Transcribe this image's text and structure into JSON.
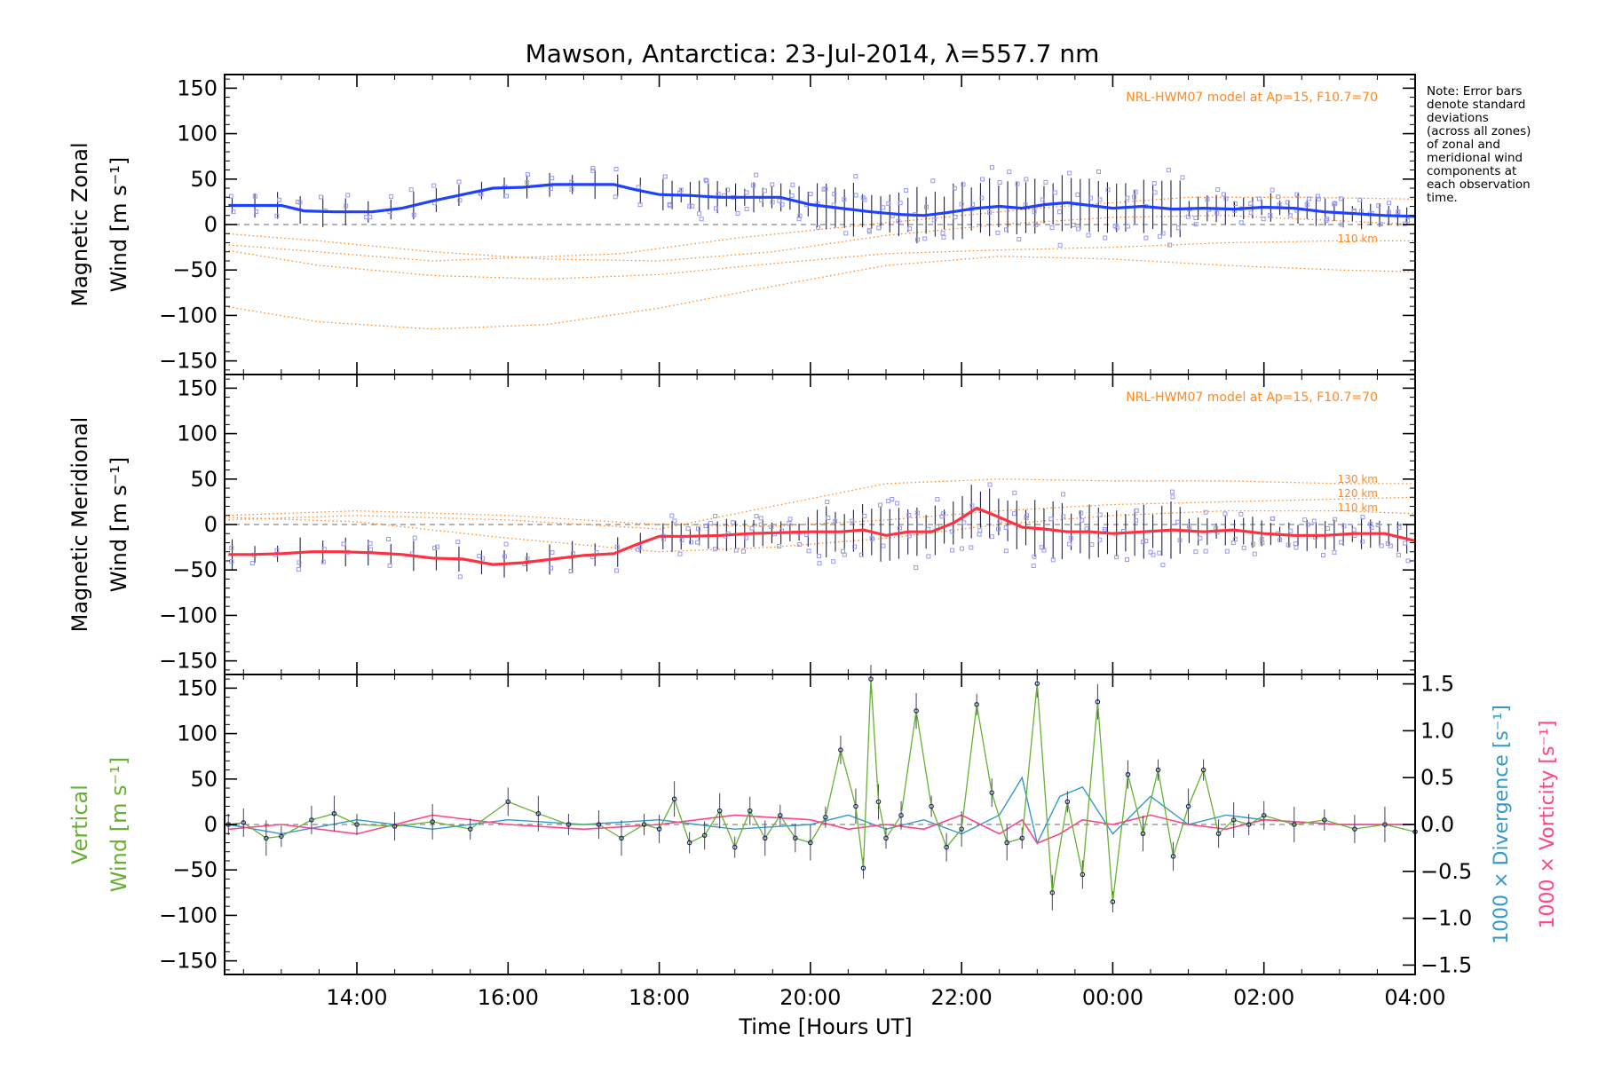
{
  "title": "Mawson, Antarctica: 23-Jul-2014, λ=557.7 nm",
  "xlabel": "Time [Hours UT]",
  "note_lines": [
    "Note: Error bars",
    "denote standard",
    "deviations",
    "(across all zones)",
    "of zonal and",
    "meridional wind",
    "components at",
    "each observation",
    "time."
  ],
  "colors": {
    "zonal": "#2040ff",
    "meridional": "#ff3040",
    "vertical": "#66b032",
    "divergence": "#3399cc",
    "vorticity": "#ff4488",
    "model": "#ff8822",
    "zone_markers": "#9999ee"
  },
  "chart_data": [
    {
      "type": "line",
      "name": "zonal",
      "ylabel": [
        "Magnetic Zonal",
        "Wind [m s⁻¹]"
      ],
      "model_label": "NRL-HWM07 model at Ap=15, F10.7=70",
      "model_level_labels": [
        "110 km"
      ],
      "xlim": [
        12.25,
        28.0
      ],
      "xticks": [
        14,
        16,
        18,
        20,
        22,
        24,
        26,
        28
      ],
      "xtick_labels": [
        "14:00",
        "16:00",
        "18:00",
        "20:00",
        "22:00",
        "00:00",
        "02:00",
        "04:00"
      ],
      "ylim": [
        -165,
        165
      ],
      "yticks": [
        -150,
        -100,
        -50,
        0,
        50,
        100,
        150
      ],
      "series": [
        {
          "role": "mean",
          "x": [
            12.3,
            12.7,
            13.0,
            13.3,
            13.7,
            14.2,
            14.6,
            15.0,
            15.4,
            15.8,
            16.2,
            16.6,
            17.0,
            17.4,
            17.7,
            18.0,
            18.4,
            18.8,
            19.2,
            19.6,
            20.0,
            20.4,
            20.8,
            21.2,
            21.5,
            21.8,
            22.2,
            22.5,
            22.8,
            23.1,
            23.4,
            23.7,
            24.0,
            24.4,
            24.8,
            25.2,
            25.6,
            26.0,
            26.4,
            26.8,
            27.2,
            27.6,
            28.0
          ],
          "y": [
            21,
            21,
            21,
            15,
            14,
            14,
            18,
            26,
            33,
            40,
            41,
            44,
            44,
            44,
            38,
            33,
            32,
            30,
            30,
            30,
            22,
            18,
            14,
            11,
            10,
            13,
            18,
            20,
            18,
            22,
            24,
            21,
            18,
            20,
            17,
            18,
            17,
            19,
            18,
            14,
            12,
            10,
            9
          ]
        },
        {
          "role": "model",
          "x": [
            12.25,
            13.5,
            15.0,
            16.5,
            18.0,
            19.5,
            21.0,
            22.5,
            24.0,
            25.5,
            27.0,
            28.0
          ],
          "y": [
            -10,
            -18,
            -30,
            -38,
            -40,
            -30,
            -12,
            0,
            8,
            10,
            4,
            0
          ]
        },
        {
          "role": "model",
          "x": [
            12.25,
            13.5,
            15.0,
            16.5,
            18.0,
            19.5,
            21.0,
            22.5,
            24.0,
            25.5,
            27.0,
            28.0
          ],
          "y": [
            -28,
            -45,
            -56,
            -60,
            -55,
            -43,
            -32,
            -28,
            -25,
            -20,
            -18,
            -18
          ]
        },
        {
          "role": "model",
          "x": [
            12.25,
            13.5,
            15.0,
            16.5,
            18.0,
            19.5,
            21.0,
            22.5,
            24.0,
            25.5,
            27.0,
            28.0
          ],
          "y": [
            -90,
            -107,
            -115,
            -110,
            -92,
            -68,
            -45,
            -35,
            -38,
            -45,
            -50,
            -52
          ]
        },
        {
          "role": "model",
          "x": [
            12.25,
            15.0,
            17.5,
            19.0,
            21.0,
            23.0,
            25.0,
            26.5,
            28.0
          ],
          "y": [
            -22,
            -40,
            -32,
            -15,
            2,
            18,
            30,
            30,
            28
          ]
        }
      ]
    },
    {
      "type": "line",
      "name": "meridional",
      "ylabel": [
        "Magnetic Meridional",
        "Wind [m s⁻¹]"
      ],
      "model_label": "NRL-HWM07 model at Ap=15, F10.7=70",
      "model_level_labels": [
        "130 km",
        "120 km",
        "110 km"
      ],
      "ylim": [
        -165,
        165
      ],
      "yticks": [
        -150,
        -100,
        -50,
        0,
        50,
        100,
        150
      ],
      "series": [
        {
          "role": "mean",
          "x": [
            12.3,
            12.6,
            13.0,
            13.4,
            13.8,
            14.2,
            14.6,
            15.0,
            15.4,
            15.8,
            16.2,
            16.6,
            17.0,
            17.4,
            17.7,
            18.0,
            18.4,
            18.8,
            19.2,
            19.6,
            20.0,
            20.4,
            20.7,
            21.0,
            21.3,
            21.6,
            21.9,
            22.2,
            22.5,
            22.8,
            23.1,
            23.4,
            23.7,
            24.0,
            24.4,
            24.8,
            25.2,
            25.6,
            26.0,
            26.4,
            26.8,
            27.2,
            27.6,
            28.0
          ],
          "y": [
            -33,
            -33,
            -32,
            -30,
            -30,
            -31,
            -33,
            -37,
            -38,
            -44,
            -42,
            -38,
            -34,
            -32,
            -22,
            -13,
            -13,
            -12,
            -10,
            -9,
            -8,
            -8,
            -6,
            -12,
            -8,
            -8,
            2,
            18,
            8,
            -3,
            -5,
            -8,
            -8,
            -10,
            -8,
            -6,
            -8,
            -6,
            -10,
            -12,
            -12,
            -10,
            -10,
            -18
          ]
        },
        {
          "role": "model",
          "x": [
            12.25,
            14.0,
            16.0,
            18.0,
            19.5,
            21.0,
            22.5,
            24.0,
            25.5,
            27.0,
            28.0
          ],
          "y": [
            10,
            15,
            10,
            0,
            -2,
            5,
            15,
            22,
            25,
            28,
            30
          ]
        },
        {
          "role": "model",
          "x": [
            12.25,
            14.0,
            16.0,
            18.0,
            19.5,
            21.0,
            22.5,
            24.0,
            25.5,
            27.0,
            28.0
          ],
          "y": [
            5,
            10,
            5,
            -5,
            20,
            45,
            50,
            48,
            48,
            45,
            45
          ]
        },
        {
          "role": "model",
          "x": [
            12.25,
            14.0,
            16.0,
            18.0,
            19.5,
            21.0,
            22.5,
            24.0,
            25.5,
            27.0,
            28.0
          ],
          "y": [
            8,
            3,
            -15,
            -30,
            -25,
            -15,
            0,
            10,
            15,
            15,
            12
          ]
        }
      ]
    },
    {
      "type": "line",
      "name": "vertical",
      "ylabel": [
        "Vertical",
        "Wind [m s⁻¹]"
      ],
      "y2label_divergence": "1000 × Divergence [s⁻¹]",
      "y2label_vorticity": "1000 × Vorticity [s⁻¹]",
      "ylim": [
        -165,
        165
      ],
      "yticks": [
        -150,
        -100,
        -50,
        0,
        50,
        100,
        150
      ],
      "y2lim": [
        -1.6,
        1.6
      ],
      "y2ticks": [
        -1.5,
        -1.0,
        -0.5,
        0.0,
        0.5,
        1.0,
        1.5
      ],
      "y2tick_labels": [
        "−1.5",
        "−1.0",
        "−0.5",
        "0.0",
        "0.5",
        "1.0",
        "1.5"
      ],
      "series": [
        {
          "role": "vertical",
          "x": [
            12.3,
            12.5,
            12.8,
            13.0,
            13.4,
            13.7,
            14.0,
            14.5,
            15.0,
            15.5,
            16.0,
            16.4,
            16.8,
            17.2,
            17.5,
            17.8,
            18.0,
            18.2,
            18.4,
            18.6,
            18.8,
            19.0,
            19.2,
            19.4,
            19.6,
            19.8,
            20.0,
            20.2,
            20.4,
            20.6,
            20.7,
            20.8,
            20.9,
            21.0,
            21.2,
            21.4,
            21.6,
            21.8,
            22.0,
            22.2,
            22.4,
            22.6,
            22.8,
            23.0,
            23.2,
            23.4,
            23.6,
            23.8,
            24.0,
            24.2,
            24.4,
            24.6,
            24.8,
            25.0,
            25.2,
            25.4,
            25.6,
            25.8,
            26.0,
            26.4,
            26.8,
            27.2,
            27.6,
            28.0
          ],
          "y": [
            0,
            2,
            -15,
            -13,
            5,
            12,
            0,
            -2,
            3,
            -5,
            25,
            12,
            0,
            0,
            -15,
            0,
            -5,
            28,
            -20,
            -12,
            15,
            -25,
            15,
            -15,
            10,
            -15,
            -20,
            8,
            82,
            20,
            -48,
            160,
            25,
            -15,
            10,
            125,
            20,
            -25,
            -5,
            132,
            35,
            -20,
            -15,
            155,
            -75,
            25,
            -55,
            135,
            -85,
            55,
            -10,
            60,
            -35,
            20,
            60,
            -10,
            5,
            0,
            10,
            0,
            5,
            -5,
            0,
            -8
          ]
        },
        {
          "role": "divergence",
          "x": [
            12.3,
            13.0,
            14.0,
            15.0,
            16.0,
            17.0,
            18.0,
            19.0,
            20.0,
            20.5,
            21.0,
            21.5,
            22.0,
            22.5,
            22.8,
            23.0,
            23.3,
            23.6,
            24.0,
            24.5,
            25.0,
            25.5,
            26.0,
            27.0,
            28.0
          ],
          "y": [
            0.0,
            -0.1,
            0.05,
            -0.05,
            0.05,
            0.0,
            0.05,
            -0.05,
            0.0,
            0.1,
            -0.05,
            0.05,
            -0.1,
            0.1,
            0.5,
            -0.2,
            0.3,
            0.4,
            -0.1,
            0.3,
            0.0,
            0.1,
            0.05,
            0.0,
            0.0
          ]
        },
        {
          "role": "vorticity",
          "x": [
            12.3,
            13.0,
            14.0,
            15.0,
            16.0,
            17.0,
            18.0,
            19.0,
            20.0,
            20.5,
            21.0,
            21.5,
            22.0,
            22.5,
            22.8,
            23.0,
            23.3,
            23.6,
            24.0,
            24.5,
            25.0,
            25.5,
            26.0,
            27.0,
            28.0
          ],
          "y": [
            -0.05,
            0.0,
            -0.1,
            0.1,
            0.0,
            -0.05,
            0.0,
            0.1,
            0.05,
            -0.05,
            0.0,
            -0.05,
            0.1,
            -0.1,
            0.05,
            -0.2,
            -0.1,
            0.05,
            0.0,
            0.1,
            0.0,
            -0.05,
            0.05,
            0.0,
            0.0
          ]
        }
      ]
    }
  ]
}
